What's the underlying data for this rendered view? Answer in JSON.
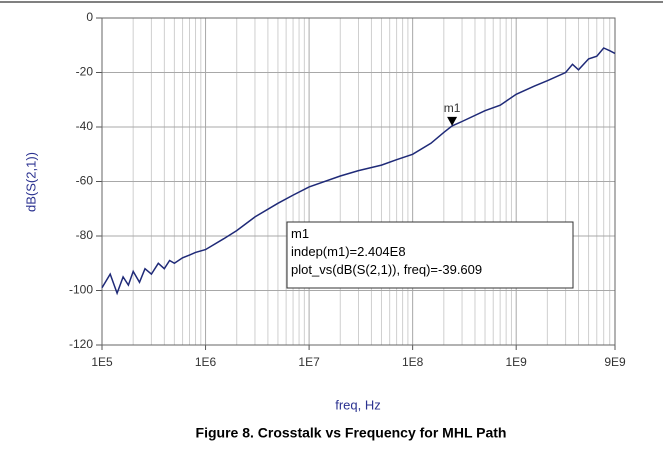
{
  "chart_data": {
    "type": "line",
    "title": "Figure 8. Crosstalk vs Frequency for MHL Path",
    "x_label": "freq, Hz",
    "y_label": "dB(S(2,1))",
    "x_scale": "log",
    "grid": true,
    "minor_xgrid": true,
    "xlim": [
      100000,
      9000000000
    ],
    "ylim": [
      -120,
      0
    ],
    "xticks": [
      {
        "value": 100000,
        "label": "1E5"
      },
      {
        "value": 1000000,
        "label": "1E6"
      },
      {
        "value": 10000000,
        "label": "1E7"
      },
      {
        "value": 100000000,
        "label": "1E8"
      },
      {
        "value": 1000000000,
        "label": "1E9"
      },
      {
        "value": 9000000000,
        "label": "9E9"
      }
    ],
    "yticks": [
      -120,
      -100,
      -80,
      -60,
      -40,
      -20,
      0
    ],
    "x": [
      100000,
      120000,
      140000,
      160000,
      180000,
      200000,
      230000,
      260000,
      300000,
      350000,
      400000,
      450000,
      500000,
      600000,
      700000,
      800000,
      1000000,
      1500000,
      2000000,
      3000000,
      5000000,
      7000000,
      10000000,
      20000000,
      30000000,
      50000000,
      70000000,
      100000000,
      150000000,
      200000000,
      240400000,
      300000000,
      500000000,
      700000000,
      1000000000,
      1500000000,
      2000000000,
      3000000000,
      3500000000,
      4000000000,
      5000000000,
      6000000000,
      7000000000,
      8000000000,
      9000000000
    ],
    "series": [
      {
        "name": "dB(S(2,1))",
        "color": "#1f2a78",
        "values": [
          -99,
          -94,
          -101,
          -95,
          -98,
          -93,
          -97,
          -92,
          -94,
          -90,
          -92,
          -89,
          -90,
          -88,
          -87,
          -86,
          -85,
          -81,
          -78,
          -73,
          -68,
          -65,
          -62,
          -58,
          -56,
          -54,
          -52,
          -50,
          -46,
          -42,
          -39.609,
          -38,
          -34,
          -32,
          -28,
          -25,
          -23,
          -20,
          -17,
          -19,
          -15,
          -14,
          -11,
          -12,
          -13
        ]
      }
    ],
    "marker": {
      "name": "m1",
      "x": 240400000,
      "y": -39.609,
      "lines": [
        "m1",
        "indep(m1)=2.404E8",
        "plot_vs(dB(S(2,1)), freq)=-39.609"
      ]
    }
  }
}
